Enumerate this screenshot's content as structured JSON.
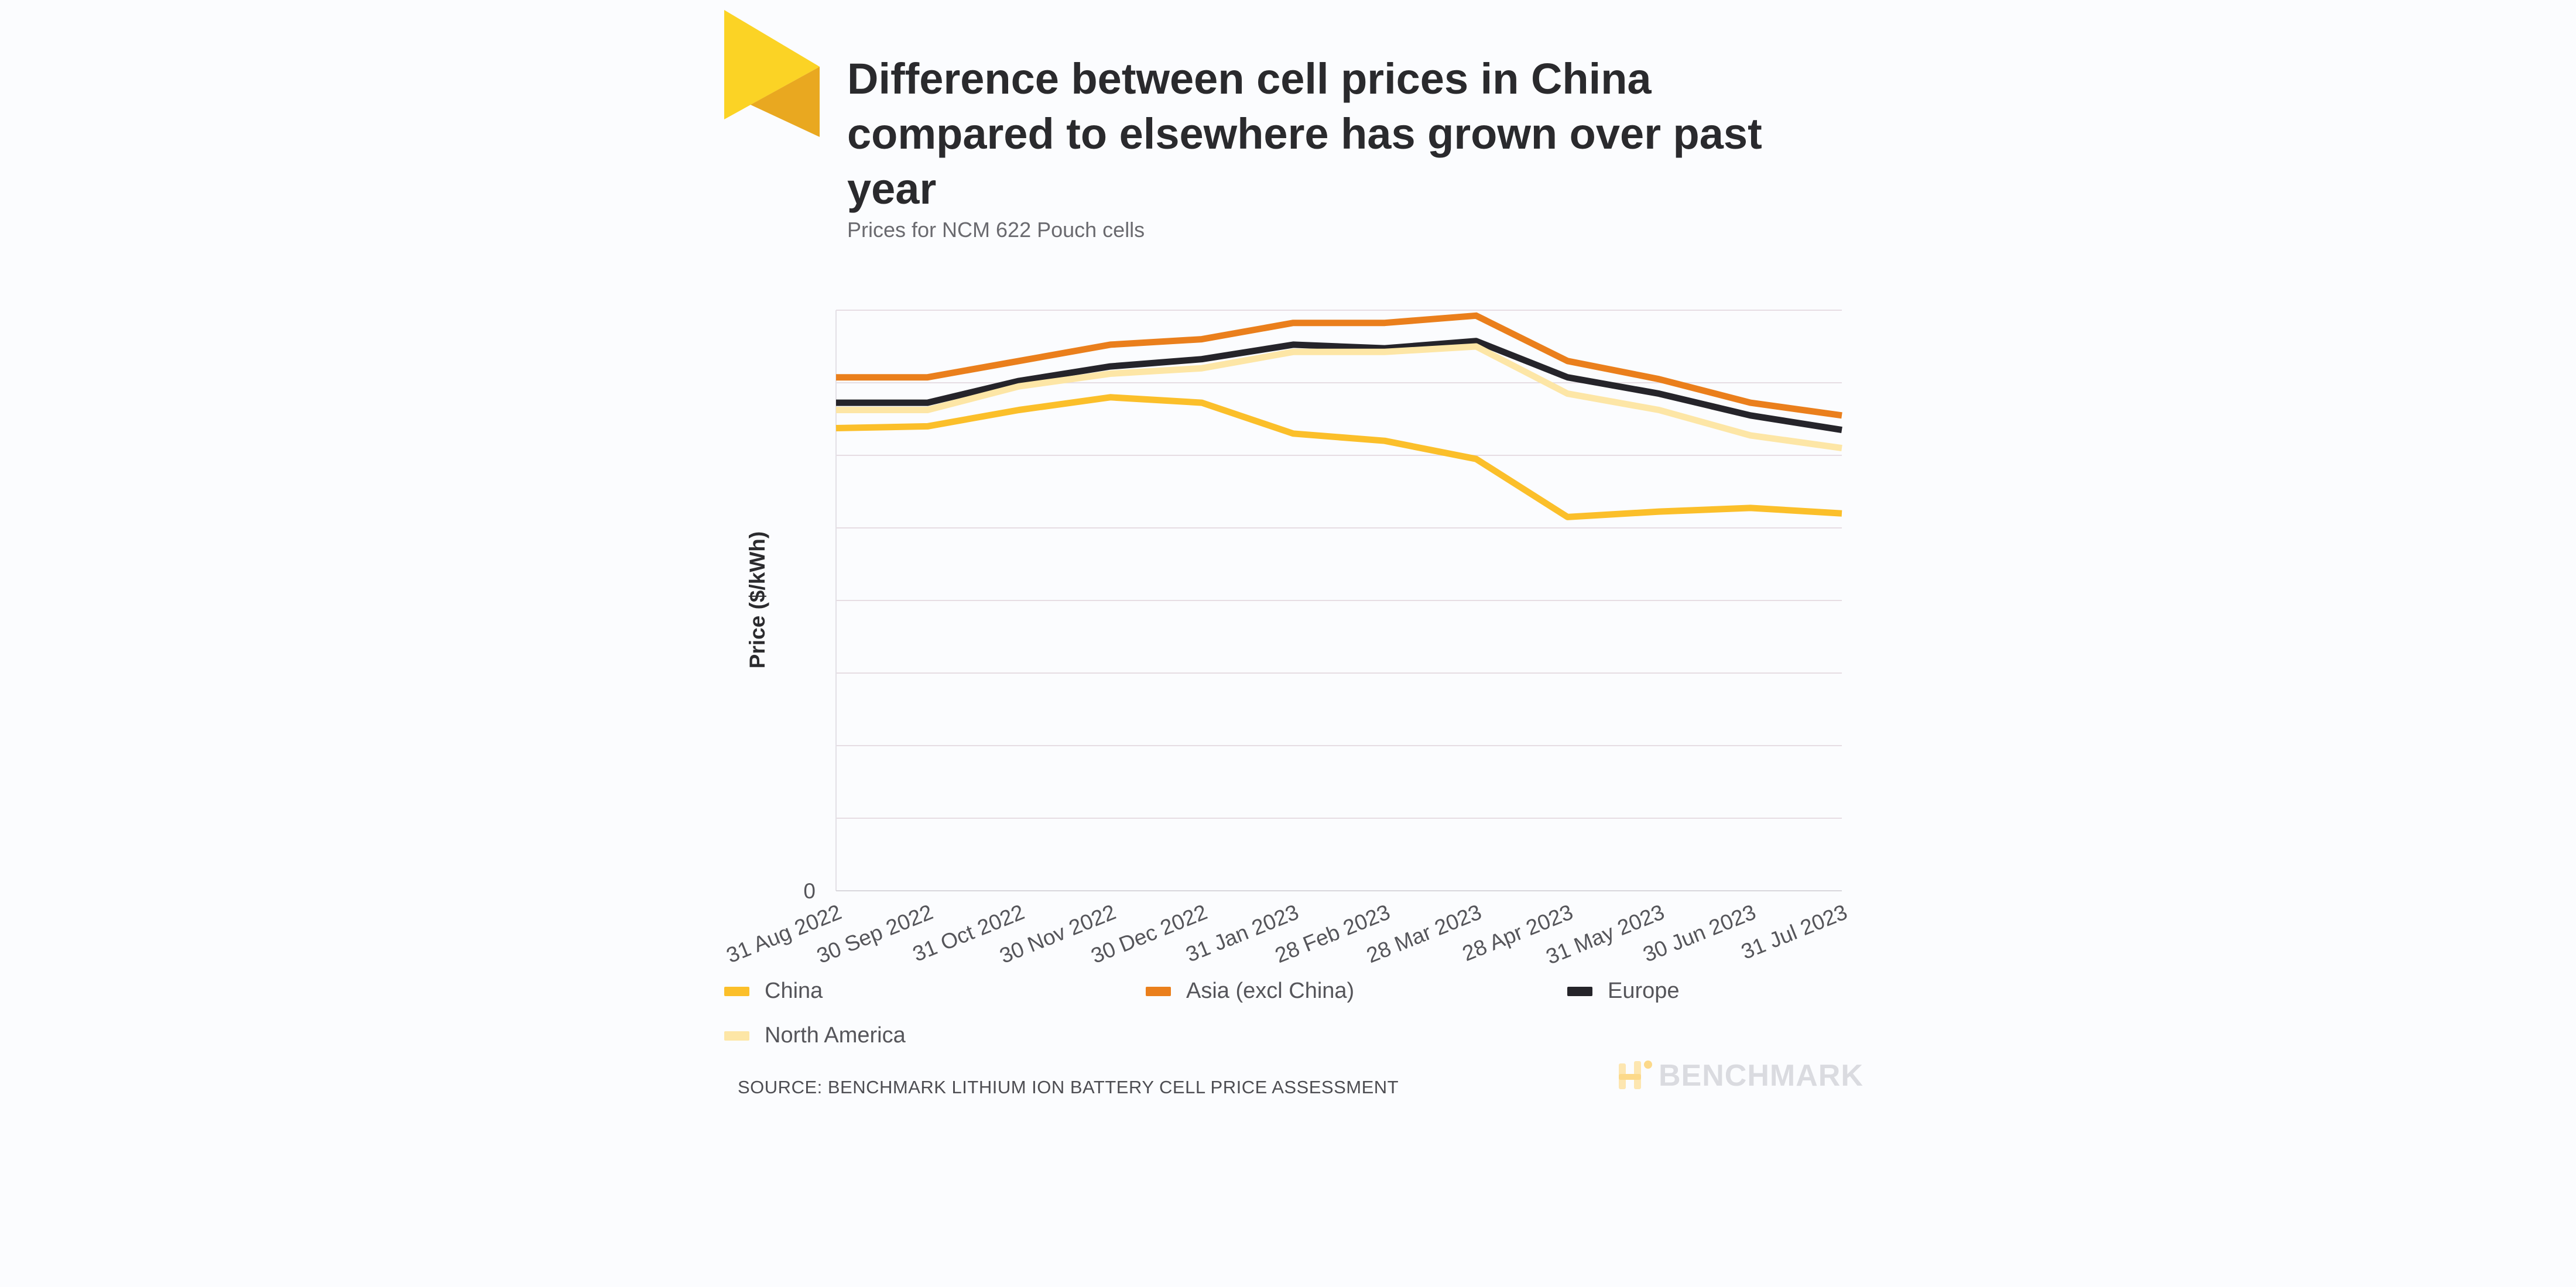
{
  "header": {
    "title": "Difference between cell prices in China compared to elsewhere has grown over past year",
    "subtitle": "Prices for NCM 622 Pouch cells"
  },
  "footer": {
    "source": "SOURCE: BENCHMARK LITHIUM ION BATTERY CELL PRICE ASSESSMENT",
    "brand": "BENCHMARK"
  },
  "colors": {
    "china": "#fbbf2a",
    "asia": "#ea7f1c",
    "europe": "#25242a",
    "north_america": "#fde6a6",
    "logo_light": "#fbd325",
    "logo_dark": "#e9a820",
    "grid": "#e6dde3"
  },
  "chart_data": {
    "type": "line",
    "title": "Difference between cell prices in China compared to elsewhere has grown over past year",
    "subtitle": "Prices for NCM 622 Pouch cells",
    "xlabel": "",
    "ylabel": "Price ($/kWh)",
    "ylim": [
      0,
      160
    ],
    "y_tick_labels": [
      "0"
    ],
    "grid": true,
    "legend_position": "bottom",
    "categories": [
      "31 Aug 2022",
      "30 Sep 2022",
      "31 Oct 2022",
      "30 Nov 2022",
      "30 Dec 2022",
      "31 Jan 2023",
      "28 Feb 2023",
      "28 Mar 2023",
      "28 Apr 2023",
      "31 May 2023",
      "30 Jun 2023",
      "31 Jul 2023"
    ],
    "series": [
      {
        "name": "China",
        "color": "#fbbf2a",
        "values": [
          127.5,
          128,
          132.5,
          136,
          134.5,
          126,
          124,
          119,
          103,
          104.5,
          105.5,
          104
        ]
      },
      {
        "name": "Asia (excl China)",
        "color": "#ea7f1c",
        "values": [
          141.5,
          141.5,
          146,
          150.5,
          152,
          156.5,
          156.5,
          158.5,
          146,
          141,
          134.5,
          131
        ]
      },
      {
        "name": "Europe",
        "color": "#25242a",
        "values": [
          134.5,
          134.5,
          140.5,
          144.5,
          146.5,
          150.5,
          149.5,
          151.5,
          141.5,
          137,
          131,
          127
        ]
      },
      {
        "name": "North America",
        "color": "#fde6a6",
        "values": [
          132.5,
          132.5,
          139,
          142.5,
          144,
          148.5,
          148.5,
          150,
          137,
          132.5,
          125.5,
          122
        ]
      }
    ]
  }
}
